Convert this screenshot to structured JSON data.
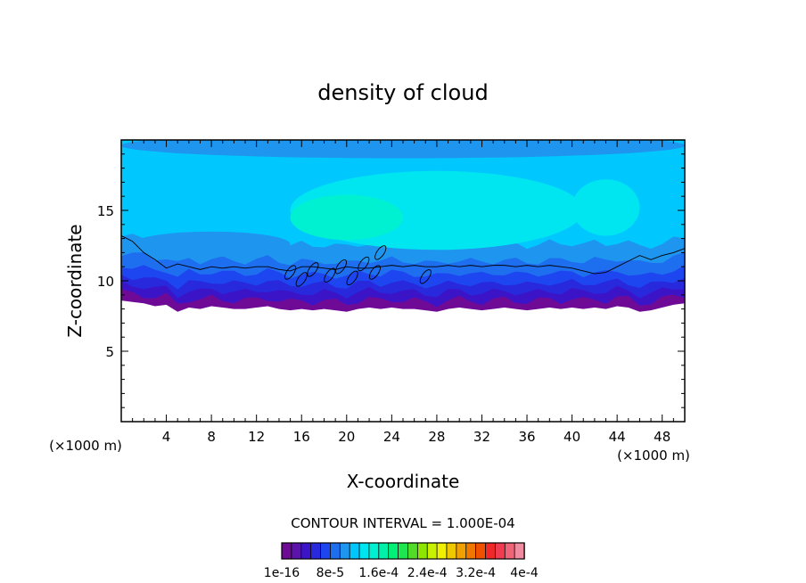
{
  "chart_data": {
    "type": "heatmap",
    "title": "density of cloud",
    "xlabel": "X-coordinate",
    "ylabel": "Z-coordinate",
    "x_unit": "(×1000 m)",
    "z_unit": "(×1000 m)",
    "xlim": [
      0,
      50
    ],
    "ylim": [
      0,
      20
    ],
    "x_ticks": [
      4,
      8,
      12,
      16,
      20,
      24,
      28,
      32,
      36,
      40,
      44,
      48
    ],
    "y_ticks": [
      5,
      10,
      15
    ],
    "contour_interval_text": "CONTOUR INTERVAL = 1.000E-04",
    "colorbar": {
      "colors": [
        "#6e0a96",
        "#5a14aa",
        "#3c14c8",
        "#2828dc",
        "#1e46f0",
        "#1e6ef0",
        "#1e96f0",
        "#00c8ff",
        "#00e6f0",
        "#00f0d2",
        "#00f0aa",
        "#00f078",
        "#1ee650",
        "#50dc28",
        "#8ce600",
        "#c8f000",
        "#f0f000",
        "#f0c800",
        "#f0a000",
        "#f07800",
        "#f05000",
        "#f02828",
        "#f03c50",
        "#f06478",
        "#f08ca0"
      ],
      "tick_labels": [
        "1e-16",
        "8e-5",
        "1.6e-4",
        "2.4e-4",
        "3.2e-4",
        "4e-4"
      ]
    },
    "field": {
      "cloud_base_km": [
        8.6,
        8.5,
        8.4,
        8.2,
        8.3,
        7.8,
        8.1,
        8.0,
        8.2,
        8.1,
        8.0,
        8.0,
        8.1,
        8.2,
        8.0,
        7.9,
        8.0,
        7.9,
        8.0,
        7.9,
        7.8,
        8.0,
        8.1,
        8.0,
        8.1,
        8.0,
        8.0,
        7.9,
        7.8,
        8.0,
        8.1,
        8.0,
        7.9,
        8.0,
        8.1,
        8.0,
        7.9,
        8.0,
        8.1,
        8.0,
        8.1,
        8.0,
        8.1,
        8.0,
        8.2,
        8.1,
        7.8,
        7.9,
        8.1,
        8.3,
        8.4
      ],
      "contour_line_km": [
        13.2,
        12.8,
        12.0,
        11.5,
        10.9,
        11.2,
        11.0,
        10.8,
        11.0,
        10.9,
        11.0,
        10.9,
        11.0,
        11.0,
        10.8,
        10.7,
        11.0,
        11.0,
        10.9,
        10.8,
        11.0,
        10.9,
        10.9,
        11.0,
        11.1,
        11.0,
        11.1,
        11.0,
        11.0,
        11.1,
        11.0,
        11.1,
        11.0,
        11.1,
        11.1,
        11.0,
        11.1,
        11.0,
        11.1,
        11.0,
        10.9,
        10.7,
        10.5,
        10.6,
        11.0,
        11.4,
        11.8,
        11.5,
        11.8,
        12.0,
        12.3
      ]
    }
  }
}
